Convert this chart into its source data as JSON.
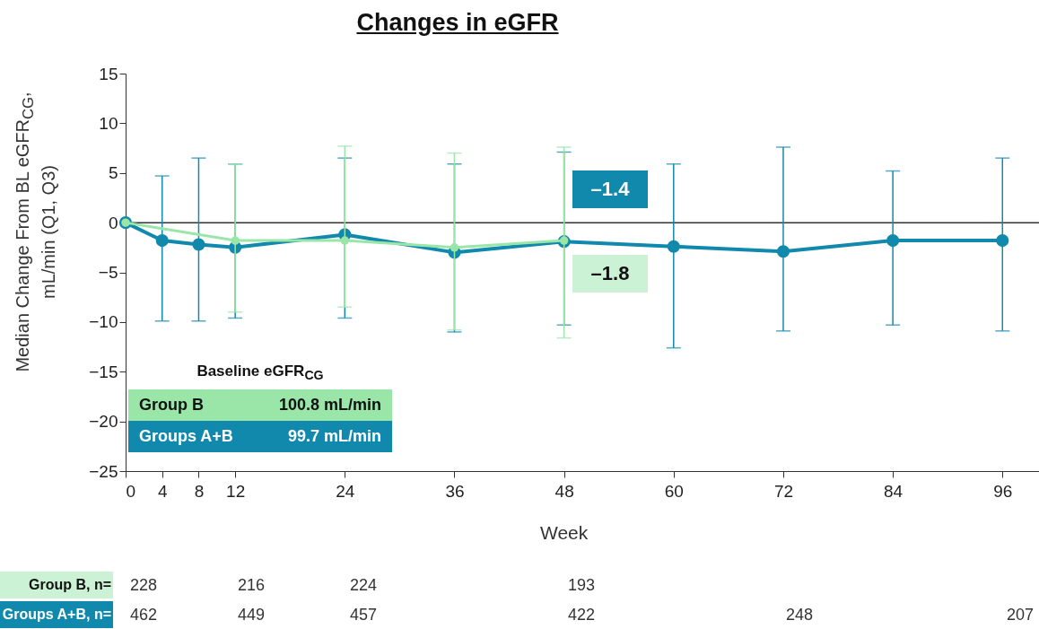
{
  "chart_data": {
    "type": "line",
    "title": "Changes in eGFR",
    "xlabel": "Week",
    "ylabel": "Median Change From BL eGFR$_{CG}$,\nmL/min (Q1, Q3)",
    "xlim": [
      0,
      100
    ],
    "xticks": [
      0,
      4,
      8,
      12,
      24,
      36,
      48,
      60,
      72,
      84,
      96
    ],
    "ylim": [
      -25,
      15
    ],
    "yticks": [
      -25,
      -20,
      -15,
      -10,
      -5,
      0,
      5,
      10,
      15
    ],
    "marker": "circle",
    "legend": "bottom left",
    "ref_lines": [
      {
        "axis": "y",
        "value": 0,
        "color": "#333333"
      }
    ],
    "series": [
      {
        "name": "Group B",
        "color": "#99e6a8",
        "x": [
          0,
          12,
          24,
          36,
          48
        ],
        "values": [
          0,
          -1.8,
          -1.8,
          -2.5,
          -1.8
        ],
        "errors": [
          null,
          [
            -9.0,
            5.9
          ],
          [
            -8.5,
            7.7
          ],
          [
            -10.8,
            7.0
          ],
          [
            -11.6,
            7.6
          ]
        ]
      },
      {
        "name": "Groups A+B",
        "color": "#1089ad",
        "x": [
          0,
          4,
          8,
          12,
          24,
          36,
          48,
          60,
          72,
          84,
          96
        ],
        "values": [
          0,
          -1.8,
          -2.2,
          -2.5,
          -1.2,
          -3.0,
          -1.9,
          -2.4,
          -2.9,
          -1.8,
          -1.8
        ],
        "errors": [
          null,
          [
            -9.9,
            4.7
          ],
          [
            -9.9,
            6.5
          ],
          [
            -9.6,
            5.9
          ],
          [
            -9.6,
            6.5
          ],
          [
            -11.0,
            5.9
          ],
          [
            -10.3,
            7.1
          ],
          [
            -12.6,
            5.9
          ],
          [
            -10.9,
            7.6
          ],
          [
            -10.3,
            5.2
          ],
          [
            -10.9,
            6.5
          ]
        ]
      }
    ],
    "annotations": [
      "–1.4",
      "–1.8",
      "Baseline eGFR$_{CG}$",
      "100.8 mL/min",
      "99.7 mL/min",
      "Group B, n=",
      "228",
      "216",
      "224",
      "193",
      "Groups A+B, n=",
      "462",
      "449",
      "457",
      "422",
      "248",
      "207"
    ]
  }
}
